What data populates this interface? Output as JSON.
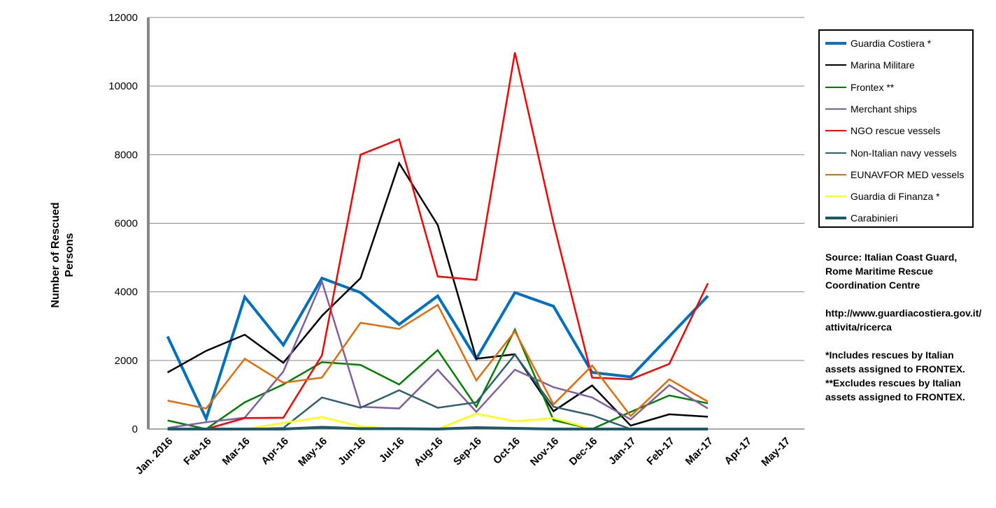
{
  "chart_data": {
    "type": "line",
    "title": "",
    "xlabel": "",
    "ylabel": "Number of Rescued Persons",
    "ylim": [
      0,
      12000
    ],
    "yticks": [
      "0",
      "2000",
      "4000",
      "6000",
      "8000",
      "10000",
      "12000"
    ],
    "grid": true,
    "legend_position": "top-right",
    "categories": [
      "Jan. 2016",
      "Feb-16",
      "Mar-16",
      "Apr-16",
      "May-16",
      "Jun-16",
      "Jul-16",
      "Aug-16",
      "Sep-16",
      "Oct-16",
      "Nov-16",
      "Dec-16",
      "Jan-17",
      "Feb-17",
      "Mar-17",
      "Apr-17",
      "May-17"
    ],
    "series": [
      {
        "name": "Guardia Costiera *",
        "color": "#0070c0",
        "width": 4,
        "values": [
          2700,
          300,
          3850,
          2450,
          4400,
          3980,
          3050,
          3880,
          2050,
          3980,
          3580,
          1650,
          1520,
          2700,
          3880,
          null,
          null
        ]
      },
      {
        "name": "Marina Militare",
        "color": "#000000",
        "width": 2.5,
        "values": [
          1650,
          2280,
          2750,
          1930,
          3300,
          4400,
          7750,
          5950,
          2050,
          2180,
          520,
          1270,
          100,
          430,
          360,
          null,
          null
        ]
      },
      {
        "name": "Frontex **",
        "color": "#008000",
        "width": 2.5,
        "values": [
          250,
          0,
          780,
          1300,
          1950,
          1870,
          1300,
          2300,
          650,
          2900,
          260,
          0,
          500,
          980,
          750,
          null,
          null
        ]
      },
      {
        "name": "Merchant ships",
        "color": "#7f5f9f",
        "width": 2.5,
        "values": [
          30,
          200,
          330,
          1680,
          4300,
          650,
          600,
          1730,
          500,
          1730,
          1220,
          920,
          280,
          1280,
          600,
          null,
          null
        ]
      },
      {
        "name": "NGO rescue vessels",
        "color": "#ff0000",
        "width": 2.5,
        "values": [
          null,
          0,
          320,
          330,
          2150,
          8000,
          8450,
          4450,
          4350,
          10980,
          6000,
          1500,
          1450,
          1900,
          4250,
          null,
          null
        ]
      },
      {
        "name": "Non-Italian navy vessels",
        "color": "#2f6070",
        "width": 2.5,
        "values": [
          0,
          0,
          0,
          30,
          920,
          620,
          1130,
          620,
          780,
          2170,
          650,
          400,
          0,
          0,
          0,
          null,
          null
        ]
      },
      {
        "name": "EUNAVFOR MED vessels",
        "color": "#e46c0a",
        "width": 2.5,
        "values": [
          830,
          600,
          2050,
          1350,
          1500,
          3100,
          2920,
          3620,
          1420,
          2850,
          720,
          1850,
          380,
          1450,
          800,
          null,
          null
        ]
      },
      {
        "name": "Guardia di Finanza *",
        "color": "#ffff00",
        "width": 2.5,
        "values": [
          0,
          0,
          0,
          180,
          350,
          80,
          0,
          0,
          450,
          230,
          320,
          0,
          0,
          0,
          0,
          null,
          null
        ]
      },
      {
        "name": "Carabinieri",
        "color": "#215868",
        "width": 4,
        "values": [
          0,
          0,
          0,
          0,
          50,
          10,
          10,
          0,
          40,
          20,
          0,
          0,
          0,
          0,
          0,
          null,
          null
        ]
      }
    ]
  },
  "notes": {
    "source": "Source: Italian Coast Guard, Rome Maritime Rescue Coordination  Centre",
    "url": "http://www.guardiacostiera.gov.it/attivita/ricerca",
    "note1": "*Includes rescues by Italian assets assigned to FRONTEX.",
    "note2": "**Excludes rescues by Italian assets assigned to FRONTEX."
  }
}
